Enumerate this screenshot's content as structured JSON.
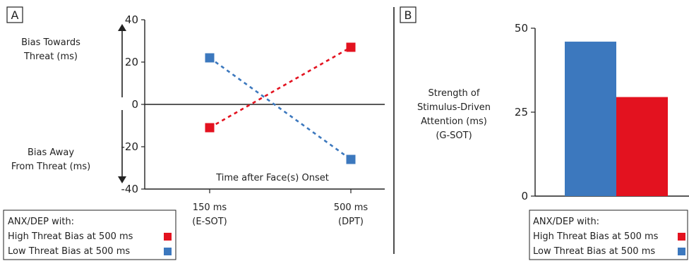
{
  "chart_data": [
    {
      "type": "line",
      "panel_label": "A",
      "x_categories": [
        "150 ms\n(E-SOT)",
        "500 ms\n(DPT)"
      ],
      "x_tick_lines": [
        [
          "150 ms",
          "(E-SOT)"
        ],
        [
          "500 ms",
          "(DPT)"
        ]
      ],
      "xlabel": "Time after Face(s) Onset",
      "yticks": [
        40,
        20,
        0,
        -20,
        -40
      ],
      "ylim": [
        -40,
        40
      ],
      "y_annotation_up": [
        "Bias Towards",
        "Threat (ms)"
      ],
      "y_annotation_down": [
        "Bias Away",
        "From Threat (ms)"
      ],
      "series": [
        {
          "name": "High Threat Bias at 500 ms",
          "color": "#e3121f",
          "values": [
            -11,
            27
          ]
        },
        {
          "name": "Low Threat Bias at 500 ms",
          "color": "#3c78be",
          "values": [
            22,
            -26
          ]
        }
      ],
      "legend": {
        "title": "ANX/DEP with:",
        "placement": "bottom-left"
      }
    },
    {
      "type": "bar",
      "panel_label": "B",
      "ylabel_lines": [
        "Strength of",
        "Stimulus-Driven",
        "Attention (ms)",
        "(G-SOT)"
      ],
      "yticks": [
        50,
        25,
        0
      ],
      "ylim": [
        0,
        50
      ],
      "series": [
        {
          "name": "Low Threat Bias at 500 ms",
          "color": "#3c78be",
          "value": 46
        },
        {
          "name": "High Threat Bias at 500 ms",
          "color": "#e3121f",
          "value": 29.5
        }
      ],
      "legend": {
        "title": "ANX/DEP with:",
        "placement": "bottom",
        "entries": [
          {
            "label": "High Threat Bias at 500 ms",
            "color": "#e3121f"
          },
          {
            "label": "Low Threat Bias at 500 ms",
            "color": "#3c78be"
          }
        ]
      }
    }
  ]
}
